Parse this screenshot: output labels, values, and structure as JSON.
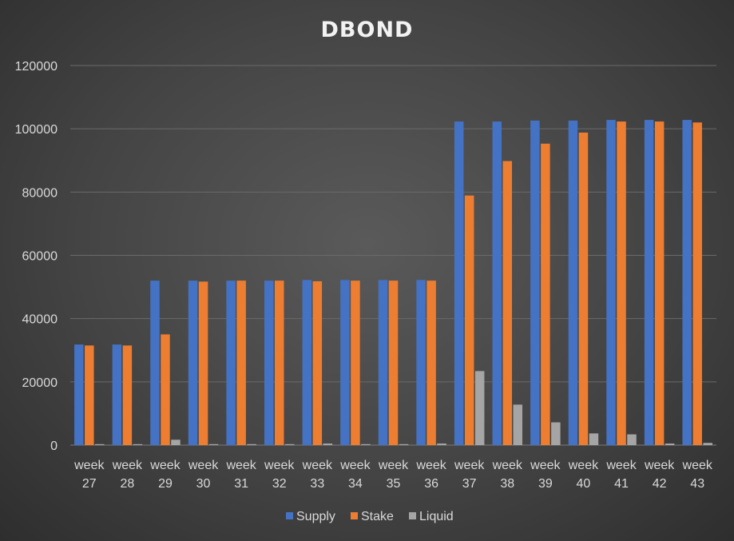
{
  "chart_data": {
    "type": "bar",
    "title": "DBOND",
    "xlabel": "",
    "ylabel": "",
    "ylim": [
      0,
      120000
    ],
    "yticks": [
      0,
      20000,
      40000,
      60000,
      80000,
      100000,
      120000
    ],
    "ytick_labels": [
      "0",
      "20000",
      "40000",
      "60000",
      "80000",
      "100000",
      "120000"
    ],
    "grid": true,
    "legend_position": "bottom",
    "categories": [
      [
        "week",
        "27"
      ],
      [
        "week",
        "28"
      ],
      [
        "week",
        "29"
      ],
      [
        "week",
        "30"
      ],
      [
        "week",
        "31"
      ],
      [
        "week",
        "32"
      ],
      [
        "week",
        "33"
      ],
      [
        "week",
        "34"
      ],
      [
        "week",
        "35"
      ],
      [
        "week",
        "36"
      ],
      [
        "week",
        "37"
      ],
      [
        "week",
        "38"
      ],
      [
        "week",
        "39"
      ],
      [
        "week",
        "40"
      ],
      [
        "week",
        "41"
      ],
      [
        "week",
        "42"
      ],
      [
        "week",
        "43"
      ]
    ],
    "series": [
      {
        "name": "Supply",
        "color": "#4472c4",
        "values": [
          31800,
          31800,
          52000,
          52000,
          52000,
          52000,
          52200,
          52200,
          52200,
          52200,
          102300,
          102300,
          102600,
          102600,
          102800,
          102800,
          102800
        ]
      },
      {
        "name": "Stake",
        "color": "#ed7d31",
        "values": [
          31500,
          31500,
          35000,
          51700,
          52000,
          52000,
          51800,
          52000,
          52000,
          52000,
          78900,
          89800,
          95300,
          98800,
          102300,
          102300,
          102000
        ]
      },
      {
        "name": "Liquid",
        "color": "#a5a5a5",
        "values": [
          300,
          300,
          1700,
          300,
          300,
          300,
          500,
          300,
          300,
          500,
          23400,
          12800,
          7200,
          3700,
          3400,
          500,
          700
        ]
      }
    ]
  }
}
